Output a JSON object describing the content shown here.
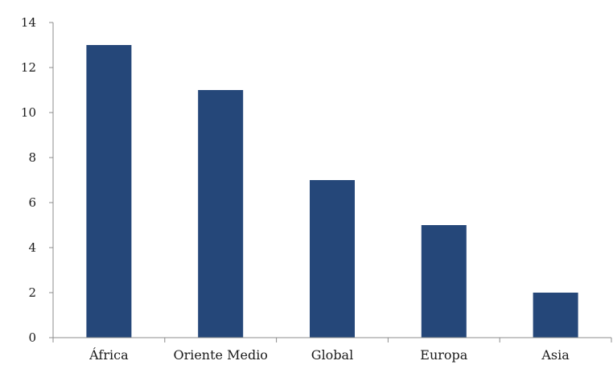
{
  "chart_data": {
    "type": "bar",
    "categories": [
      "África",
      "Oriente Medio",
      "Global",
      "Europa",
      "Asia"
    ],
    "values": [
      13,
      11,
      7,
      5,
      2
    ],
    "ylim": [
      0,
      14
    ],
    "yticks": [
      0,
      2,
      4,
      6,
      8,
      10,
      12,
      14
    ],
    "grid": false,
    "legend": "none",
    "colors": {
      "bar": "#254779",
      "axis": "#8c8c8c",
      "text": "#1a1a1a"
    }
  }
}
